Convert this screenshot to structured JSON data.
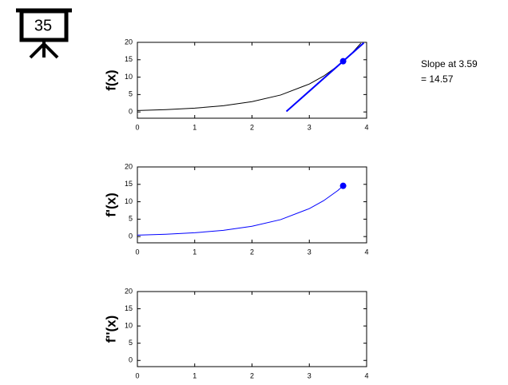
{
  "badge": "35",
  "chart_data": [
    {
      "type": "line",
      "ylabel": "f(x)",
      "annotation": [
        "Slope at 3.59",
        "= 14.57"
      ],
      "xlim": [
        0,
        4
      ],
      "ylim": [
        -1.8,
        20
      ],
      "xticks": [
        0,
        1,
        2,
        3,
        4
      ],
      "yticks": [
        0,
        5,
        10,
        15,
        20
      ],
      "series": [
        {
          "color": "#000000",
          "x": [
            0,
            0.5,
            1,
            1.5,
            2,
            2.5,
            3,
            3.25,
            3.5,
            3.75,
            3.9
          ],
          "values": [
            0.4,
            0.66,
            1.09,
            1.79,
            2.96,
            4.87,
            8.03,
            10.31,
            13.25,
            17.01,
            19.76
          ]
        },
        {
          "color": "#0000ff",
          "width": 2,
          "x": [
            2.6,
            3.95
          ],
          "values": [
            0.15,
            19.82
          ]
        },
        {
          "color": "#0000ff",
          "marker": true,
          "x": [
            3.59
          ],
          "values": [
            14.57
          ]
        }
      ]
    },
    {
      "type": "line",
      "ylabel": "f'(x)",
      "xlim": [
        0,
        4
      ],
      "ylim": [
        -1.8,
        20
      ],
      "xticks": [
        0,
        1,
        2,
        3,
        4
      ],
      "yticks": [
        0,
        5,
        10,
        15,
        20
      ],
      "series": [
        {
          "color": "#0000ff",
          "x": [
            0,
            0.5,
            1,
            1.5,
            2,
            2.5,
            3,
            3.25,
            3.5,
            3.59
          ],
          "values": [
            0.4,
            0.66,
            1.09,
            1.79,
            2.96,
            4.87,
            8.03,
            10.31,
            13.25,
            14.57
          ]
        },
        {
          "color": "#0000ff",
          "marker": true,
          "x": [
            3.59
          ],
          "values": [
            14.57
          ]
        }
      ]
    },
    {
      "type": "line",
      "ylabel": "f''(x)",
      "xlim": [
        0,
        4
      ],
      "ylim": [
        -1.8,
        20
      ],
      "xticks": [
        0,
        1,
        2,
        3,
        4
      ],
      "yticks": [
        0,
        5,
        10,
        15,
        20
      ],
      "series": []
    }
  ]
}
